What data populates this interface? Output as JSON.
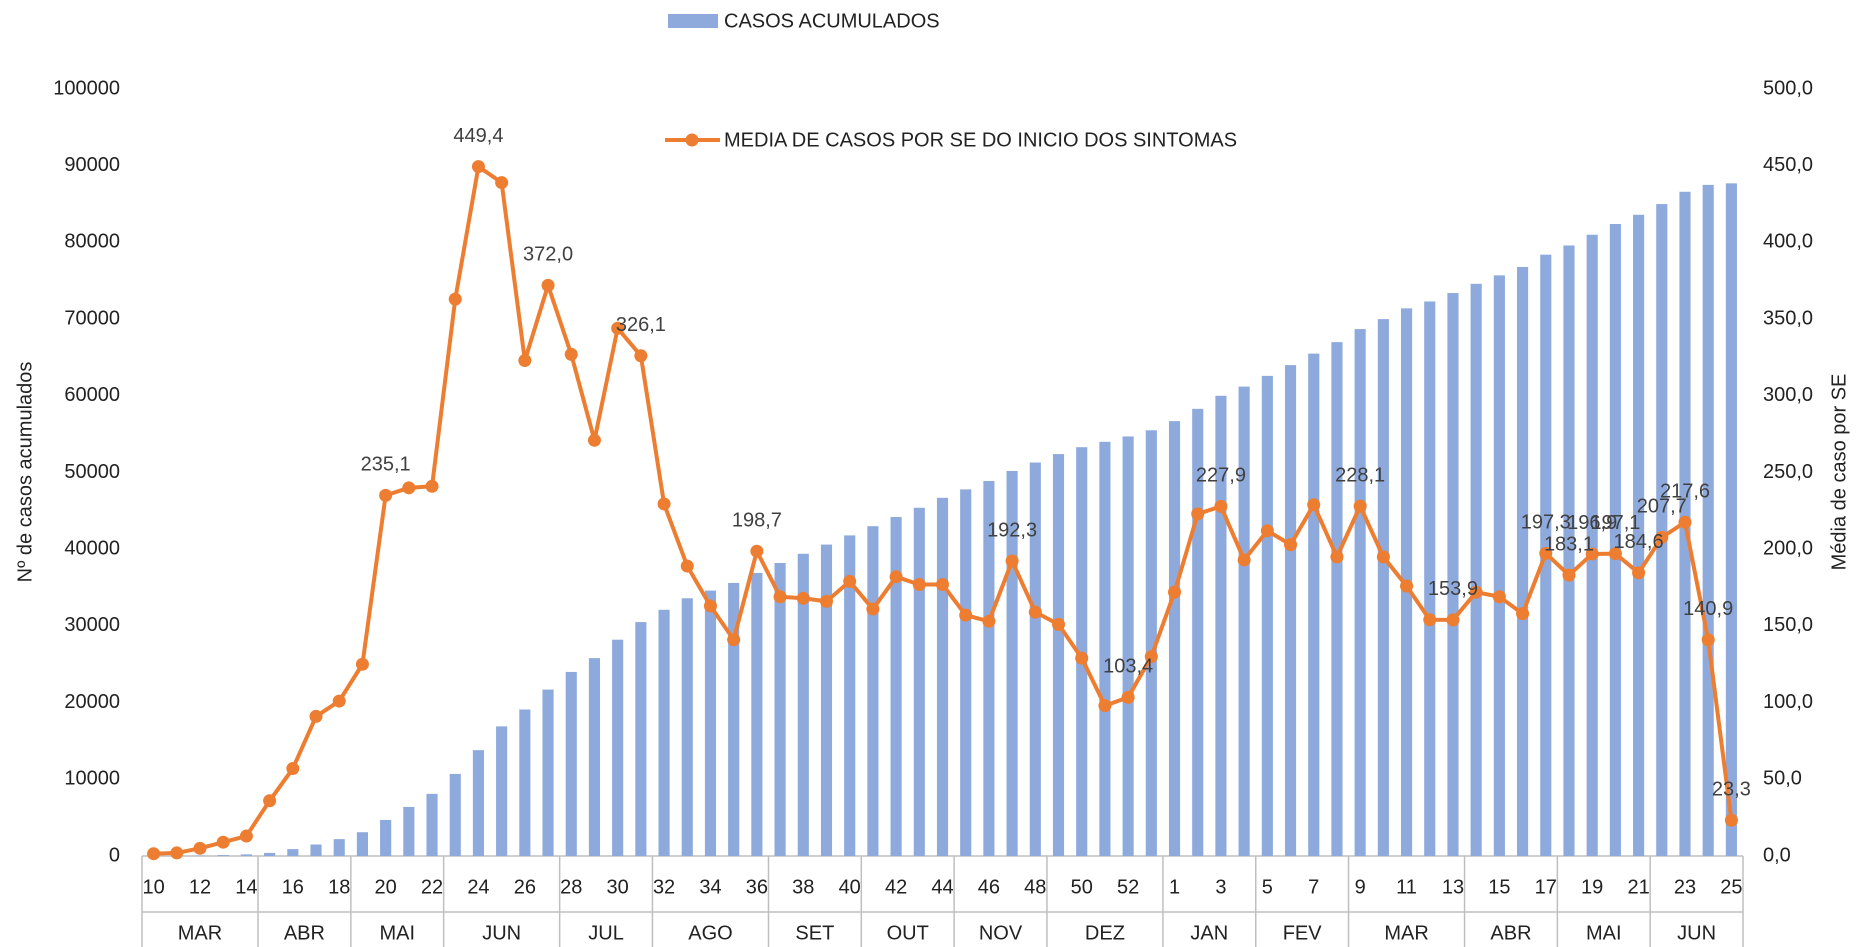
{
  "chart_data": {
    "type": "bar",
    "ylabel": "Nº de casos acumulados",
    "y2label": "Média de caso por SE",
    "categories": [
      "10",
      null,
      "12",
      null,
      "14",
      null,
      "16",
      null,
      "18",
      null,
      "20",
      null,
      "22",
      null,
      "24",
      null,
      "26",
      null,
      "28",
      null,
      "30",
      null,
      "32",
      null,
      "34",
      null,
      "36",
      null,
      "38",
      null,
      "40",
      null,
      "42",
      null,
      "44",
      null,
      "46",
      null,
      "48",
      null,
      "50",
      null,
      "52",
      null,
      "1",
      null,
      "3",
      null,
      "5",
      null,
      "7",
      null,
      "9",
      null,
      "11",
      null,
      "13",
      null,
      "15",
      null,
      "17",
      null,
      "19",
      null,
      "21",
      null,
      "23",
      null,
      "25"
    ],
    "month_categories": [
      "MAR",
      "MAR",
      "MAR",
      "MAR",
      "MAR",
      "ABR",
      "ABR",
      "ABR",
      "ABR",
      "MAI",
      "MAI",
      "MAI",
      "MAI",
      "JUN",
      "JUN",
      "JUN",
      "JUN",
      "JUN",
      "JUL",
      "JUL",
      "JUL",
      "JUL",
      "AGO",
      "AGO",
      "AGO",
      "AGO",
      "AGO",
      "SET",
      "SET",
      "SET",
      "SET",
      "OUT",
      "OUT",
      "OUT",
      "OUT",
      "NOV",
      "NOV",
      "NOV",
      "NOV",
      "DEZ",
      "DEZ",
      "DEZ",
      "DEZ",
      "DEZ",
      "JAN",
      "JAN",
      "JAN",
      "JAN",
      "FEV",
      "FEV",
      "FEV",
      "FEV",
      "MAR",
      "MAR",
      "MAR",
      "MAR",
      "MAR",
      "ABR",
      "ABR",
      "ABR",
      "ABR",
      "MAI",
      "MAI",
      "MAI",
      "MAI",
      "JUN",
      "JUN",
      "JUN",
      "JUN"
    ],
    "series": [
      {
        "name": "CASOS ACUMULADOS",
        "type": "bar",
        "color": "#8eaadc",
        "values": [
          10,
          25,
          60,
          120,
          210,
          400,
          900,
          1500,
          2200,
          3100,
          4700,
          6400,
          8100,
          10700,
          13800,
          16900,
          19100,
          21700,
          24000,
          25800,
          28200,
          30500,
          32100,
          33600,
          34600,
          35600,
          36900,
          38200,
          39400,
          40600,
          41800,
          43000,
          44200,
          45400,
          46700,
          47800,
          48900,
          50200,
          51300,
          52400,
          53300,
          54000,
          54700,
          55500,
          56700,
          58300,
          60000,
          61200,
          62600,
          64000,
          65500,
          67000,
          68700,
          70000,
          71400,
          72300,
          73400,
          74600,
          75700,
          76800,
          78400,
          79600,
          81000,
          82400,
          83600,
          85000,
          86600,
          87500,
          87700
        ]
      },
      {
        "name": "MEDIA DE CASOS POR SE DO INICIO DOS SINTOMAS",
        "type": "line",
        "axis": "y2",
        "color": "#ed7d31",
        "values": [
          1.5,
          2,
          5,
          9,
          13,
          36,
          57,
          91,
          101,
          125,
          235.1,
          240,
          241,
          363,
          449.4,
          439,
          323,
          372.0,
          327,
          271,
          344,
          326.1,
          229.5,
          189,
          163,
          141,
          198.7,
          169,
          168,
          166,
          179,
          161,
          182,
          177,
          177,
          157,
          153,
          192.3,
          159,
          151,
          129,
          98,
          103.4,
          130,
          172,
          223,
          227.9,
          193,
          212,
          203,
          229,
          195,
          228.1,
          195,
          176,
          154,
          153.9,
          172,
          169,
          158,
          197.3,
          183.1,
          196.9,
          197.1,
          184.6,
          207.7,
          217.6,
          140.9,
          23.3
        ],
        "value_labels": [
          null,
          null,
          null,
          null,
          null,
          null,
          null,
          null,
          null,
          null,
          "235,1",
          null,
          null,
          null,
          "449,4",
          null,
          null,
          "372,0",
          null,
          null,
          null,
          "326,1",
          null,
          null,
          null,
          null,
          "198,7",
          null,
          null,
          null,
          null,
          null,
          null,
          null,
          null,
          null,
          null,
          "192,3",
          null,
          null,
          null,
          null,
          "103,4",
          null,
          null,
          null,
          "227,9",
          null,
          null,
          null,
          null,
          null,
          "228,1",
          null,
          null,
          null,
          "153,9",
          null,
          null,
          null,
          "197,3",
          "183,1",
          "196,9",
          "197,1",
          "184,6",
          "207,7",
          "217,6",
          "140,9",
          "23,3"
        ]
      }
    ],
    "ylim": [
      0,
      100000
    ],
    "yticks": [
      0,
      10000,
      20000,
      30000,
      40000,
      50000,
      60000,
      70000,
      80000,
      90000,
      100000
    ],
    "y2lim": [
      0,
      500
    ],
    "y2ticks": [
      {
        "value": 0,
        "label": "0,0"
      },
      {
        "value": 50,
        "label": "50,0"
      },
      {
        "value": 100,
        "label": "100,0"
      },
      {
        "value": 150,
        "label": "150,0"
      },
      {
        "value": 200,
        "label": "200,0"
      },
      {
        "value": 250,
        "label": "250,0"
      },
      {
        "value": 300,
        "label": "300,0"
      },
      {
        "value": 350,
        "label": "350,0"
      },
      {
        "value": 400,
        "label": "400,0"
      },
      {
        "value": 450,
        "label": "450,0"
      },
      {
        "value": 500,
        "label": "500,0"
      }
    ]
  }
}
